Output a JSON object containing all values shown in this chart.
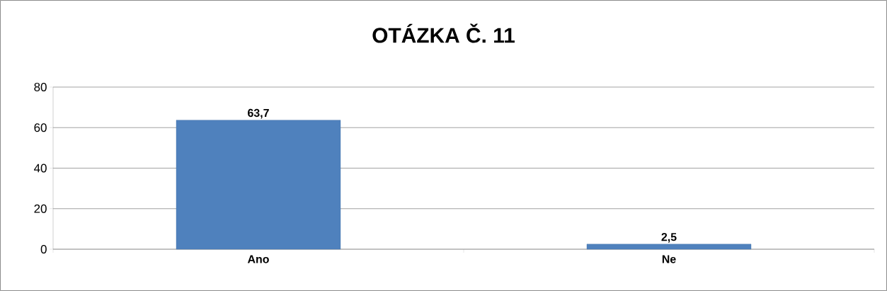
{
  "chart_data": {
    "type": "bar",
    "title": "OTÁZKA Č. 11",
    "categories": [
      "Ano",
      "Ne"
    ],
    "values": [
      63.7,
      2.5
    ],
    "value_labels": [
      "63,7",
      "2,5"
    ],
    "color": "#4f81bd",
    "ylim": [
      0,
      80
    ],
    "yticks": [
      0,
      20,
      40,
      60,
      80
    ],
    "grid": "y"
  }
}
